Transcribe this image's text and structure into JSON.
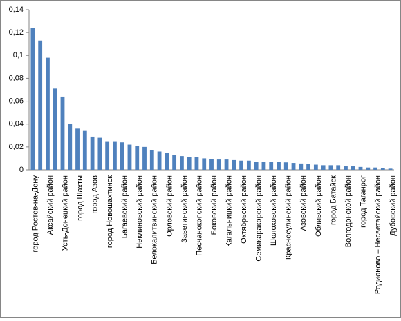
{
  "chart_data": {
    "type": "bar",
    "categories": [
      "город Ростов-на-Дону",
      null,
      "Аксайский район",
      null,
      "Усть-Донецкий район",
      null,
      "город Шахты",
      null,
      "город Азов",
      null,
      "город Новошахтинск",
      null,
      "Багаевский район",
      null,
      "Неклиновский район",
      null,
      "Белокалитвинский район",
      null,
      "Орловский район",
      null,
      "Заветинский район",
      null,
      "Песчанокопский район",
      null,
      "Боковский район",
      null,
      "Кагальницкий район",
      null,
      "Октябрьский район",
      null,
      "Семикаракорский район",
      null,
      "Шолоховский район",
      null,
      "Красносулинский район",
      null,
      "Азовский район",
      null,
      "Обливский район",
      null,
      "город Батайск",
      null,
      "Волгодонской район",
      null,
      "город Таганрог",
      null,
      "Родионово – Несветайский район",
      null,
      "Дубовский район"
    ],
    "values": [
      0.124,
      0.113,
      0.098,
      0.071,
      0.064,
      0.04,
      0.036,
      0.034,
      0.029,
      0.028,
      0.025,
      0.025,
      0.024,
      0.022,
      0.021,
      0.02,
      0.017,
      0.016,
      0.015,
      0.013,
      0.012,
      0.011,
      0.011,
      0.01,
      0.0095,
      0.009,
      0.009,
      0.0085,
      0.008,
      0.008,
      0.007,
      0.007,
      0.007,
      0.007,
      0.0065,
      0.006,
      0.0055,
      0.005,
      0.0045,
      0.004,
      0.004,
      0.004,
      0.003,
      0.003,
      0.0025,
      0.002,
      0.002,
      0.0015,
      0.001
    ],
    "color": "#4f81bd",
    "ylim": [
      0,
      0.14
    ],
    "yticks": [
      0,
      {
        "value": 0.02,
        "label": "0,02"
      },
      {
        "value": 0.04,
        "label": "0,04"
      },
      {
        "value": 0.06,
        "label": "0,06"
      },
      {
        "value": 0.08,
        "label": "0,08"
      },
      {
        "value": 0.1,
        "label": "0,1"
      },
      {
        "value": 0.12,
        "label": "0,12"
      },
      {
        "value": 0.14,
        "label": "0,14"
      }
    ],
    "grid": false
  }
}
